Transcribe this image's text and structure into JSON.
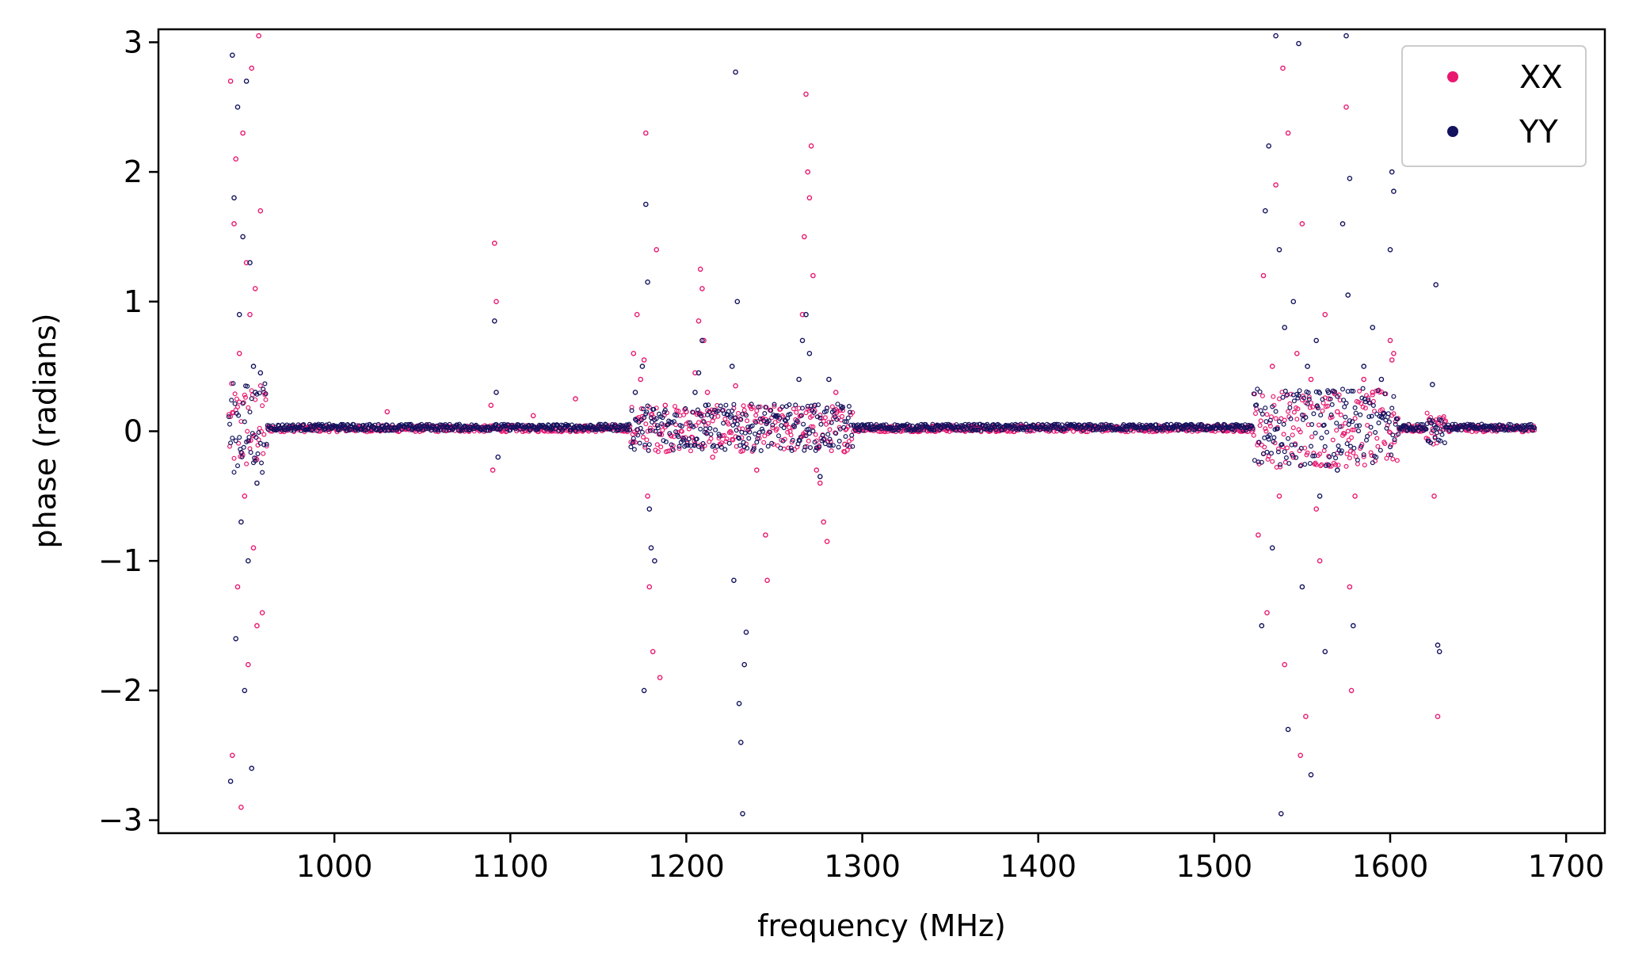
{
  "chart_data": {
    "type": "scatter",
    "title": "",
    "xlabel": "frequency (MHz)",
    "ylabel": "phase (radians)",
    "xlim": [
      900,
      1722
    ],
    "ylim": [
      -3.1,
      3.1
    ],
    "xticks": [
      1000,
      1100,
      1200,
      1300,
      1400,
      1500,
      1600,
      1700
    ],
    "yticks": [
      3,
      2,
      1,
      0,
      -1,
      -2,
      -3
    ],
    "ytick_labels": [
      "3",
      "2",
      "1",
      "0",
      "−1",
      "−2",
      "−3"
    ],
    "grid": false,
    "legend_position": "top-right",
    "series": [
      {
        "name": "XX",
        "color": "#e8186f",
        "baseline_x_range": [
          940,
          1682
        ],
        "baseline_y": 0.02,
        "points": [
          [
            941,
            2.7
          ],
          [
            942,
            -2.5
          ],
          [
            943,
            1.6
          ],
          [
            944,
            2.1
          ],
          [
            945,
            -1.2
          ],
          [
            946,
            0.6
          ],
          [
            947,
            -2.9
          ],
          [
            948,
            2.3
          ],
          [
            949,
            -0.5
          ],
          [
            950,
            1.3
          ],
          [
            951,
            -1.8
          ],
          [
            952,
            0.9
          ],
          [
            953,
            2.8
          ],
          [
            954,
            -0.9
          ],
          [
            955,
            1.1
          ],
          [
            956,
            -1.5
          ],
          [
            957,
            3.05
          ],
          [
            958,
            1.7
          ],
          [
            959,
            -1.4
          ],
          [
            960,
            0.3
          ],
          [
            1030,
            0.15
          ],
          [
            1089,
            0.2
          ],
          [
            1090,
            -0.3
          ],
          [
            1091,
            1.45
          ],
          [
            1092,
            1.0
          ],
          [
            1113,
            0.12
          ],
          [
            1137,
            0.25
          ],
          [
            1170,
            0.6
          ],
          [
            1172,
            0.9
          ],
          [
            1174,
            0.4
          ],
          [
            1176,
            0.55
          ],
          [
            1177,
            2.3
          ],
          [
            1178,
            -0.5
          ],
          [
            1179,
            -1.2
          ],
          [
            1181,
            -1.7
          ],
          [
            1183,
            1.4
          ],
          [
            1185,
            -1.9
          ],
          [
            1188,
            0.2
          ],
          [
            1200,
            0.15
          ],
          [
            1205,
            0.45
          ],
          [
            1207,
            0.85
          ],
          [
            1208,
            1.25
          ],
          [
            1209,
            1.1
          ],
          [
            1210,
            0.7
          ],
          [
            1212,
            0.3
          ],
          [
            1215,
            -0.2
          ],
          [
            1228,
            0.35
          ],
          [
            1232,
            -0.15
          ],
          [
            1240,
            -0.3
          ],
          [
            1245,
            -0.8
          ],
          [
            1246,
            -1.15
          ],
          [
            1266,
            0.9
          ],
          [
            1267,
            1.5
          ],
          [
            1268,
            2.6
          ],
          [
            1269,
            2.0
          ],
          [
            1270,
            1.8
          ],
          [
            1271,
            2.2
          ],
          [
            1272,
            1.2
          ],
          [
            1274,
            -0.3
          ],
          [
            1276,
            -0.4
          ],
          [
            1278,
            -0.7
          ],
          [
            1280,
            -0.85
          ],
          [
            1285,
            0.3
          ],
          [
            1290,
            -0.1
          ],
          [
            1525,
            -0.8
          ],
          [
            1528,
            1.2
          ],
          [
            1530,
            -1.4
          ],
          [
            1533,
            0.5
          ],
          [
            1535,
            1.9
          ],
          [
            1537,
            -0.5
          ],
          [
            1539,
            2.8
          ],
          [
            1540,
            -1.8
          ],
          [
            1542,
            2.3
          ],
          [
            1545,
            -0.2
          ],
          [
            1547,
            0.6
          ],
          [
            1549,
            -2.5
          ],
          [
            1550,
            1.6
          ],
          [
            1552,
            -2.2
          ],
          [
            1555,
            0.4
          ],
          [
            1558,
            -0.6
          ],
          [
            1560,
            -1.0
          ],
          [
            1563,
            0.9
          ],
          [
            1565,
            0.25
          ],
          [
            1568,
            0.3
          ],
          [
            1570,
            0.15
          ],
          [
            1575,
            2.5
          ],
          [
            1577,
            -1.2
          ],
          [
            1578,
            -2.0
          ],
          [
            1580,
            -0.5
          ],
          [
            1585,
            0.4
          ],
          [
            1590,
            0.3
          ],
          [
            1600,
            0.7
          ],
          [
            1601,
            0.55
          ],
          [
            1602,
            0.6
          ],
          [
            1625,
            -0.5
          ],
          [
            1627,
            -2.2
          ]
        ]
      },
      {
        "name": "YY",
        "color": "#12125e",
        "baseline_x_range": [
          940,
          1682
        ],
        "baseline_y": 0.03,
        "points": [
          [
            941,
            -2.7
          ],
          [
            942,
            2.9
          ],
          [
            943,
            1.8
          ],
          [
            944,
            -1.6
          ],
          [
            945,
            2.5
          ],
          [
            946,
            0.9
          ],
          [
            947,
            -0.7
          ],
          [
            948,
            1.5
          ],
          [
            949,
            -2.0
          ],
          [
            950,
            2.7
          ],
          [
            951,
            -1.0
          ],
          [
            952,
            1.3
          ],
          [
            953,
            -2.6
          ],
          [
            954,
            0.5
          ],
          [
            955,
            0.3
          ],
          [
            956,
            -0.4
          ],
          [
            958,
            0.45
          ],
          [
            1091,
            0.85
          ],
          [
            1092,
            0.3
          ],
          [
            1093,
            -0.2
          ],
          [
            1171,
            0.3
          ],
          [
            1175,
            0.5
          ],
          [
            1176,
            -2.0
          ],
          [
            1177,
            1.75
          ],
          [
            1178,
            1.15
          ],
          [
            1179,
            -0.6
          ],
          [
            1180,
            -0.9
          ],
          [
            1182,
            -1.0
          ],
          [
            1205,
            0.3
          ],
          [
            1207,
            0.45
          ],
          [
            1209,
            0.7
          ],
          [
            1211,
            0.2
          ],
          [
            1226,
            0.5
          ],
          [
            1227,
            -1.15
          ],
          [
            1228,
            2.77
          ],
          [
            1229,
            1.0
          ],
          [
            1230,
            -2.1
          ],
          [
            1231,
            -2.4
          ],
          [
            1232,
            -2.95
          ],
          [
            1233,
            -1.8
          ],
          [
            1234,
            -1.55
          ],
          [
            1264,
            0.4
          ],
          [
            1266,
            0.7
          ],
          [
            1268,
            0.9
          ],
          [
            1270,
            0.6
          ],
          [
            1273,
            0.2
          ],
          [
            1276,
            -0.35
          ],
          [
            1281,
            0.4
          ],
          [
            1527,
            -1.5
          ],
          [
            1529,
            1.7
          ],
          [
            1531,
            2.2
          ],
          [
            1533,
            -0.9
          ],
          [
            1535,
            3.05
          ],
          [
            1537,
            1.4
          ],
          [
            1538,
            -2.95
          ],
          [
            1540,
            0.8
          ],
          [
            1542,
            -2.3
          ],
          [
            1545,
            1.0
          ],
          [
            1548,
            2.99
          ],
          [
            1550,
            -1.2
          ],
          [
            1553,
            0.5
          ],
          [
            1555,
            -2.65
          ],
          [
            1558,
            0.7
          ],
          [
            1560,
            -0.5
          ],
          [
            1563,
            -1.7
          ],
          [
            1565,
            0.3
          ],
          [
            1570,
            -0.3
          ],
          [
            1573,
            1.6
          ],
          [
            1575,
            3.05
          ],
          [
            1576,
            1.05
          ],
          [
            1577,
            1.95
          ],
          [
            1579,
            -1.5
          ],
          [
            1585,
            0.5
          ],
          [
            1590,
            0.8
          ],
          [
            1595,
            0.4
          ],
          [
            1600,
            1.4
          ],
          [
            1601,
            2.0
          ],
          [
            1602,
            1.85
          ],
          [
            1624,
            0.36
          ],
          [
            1626,
            1.13
          ],
          [
            1627,
            -1.65
          ],
          [
            1628,
            -1.7
          ]
        ]
      }
    ]
  }
}
